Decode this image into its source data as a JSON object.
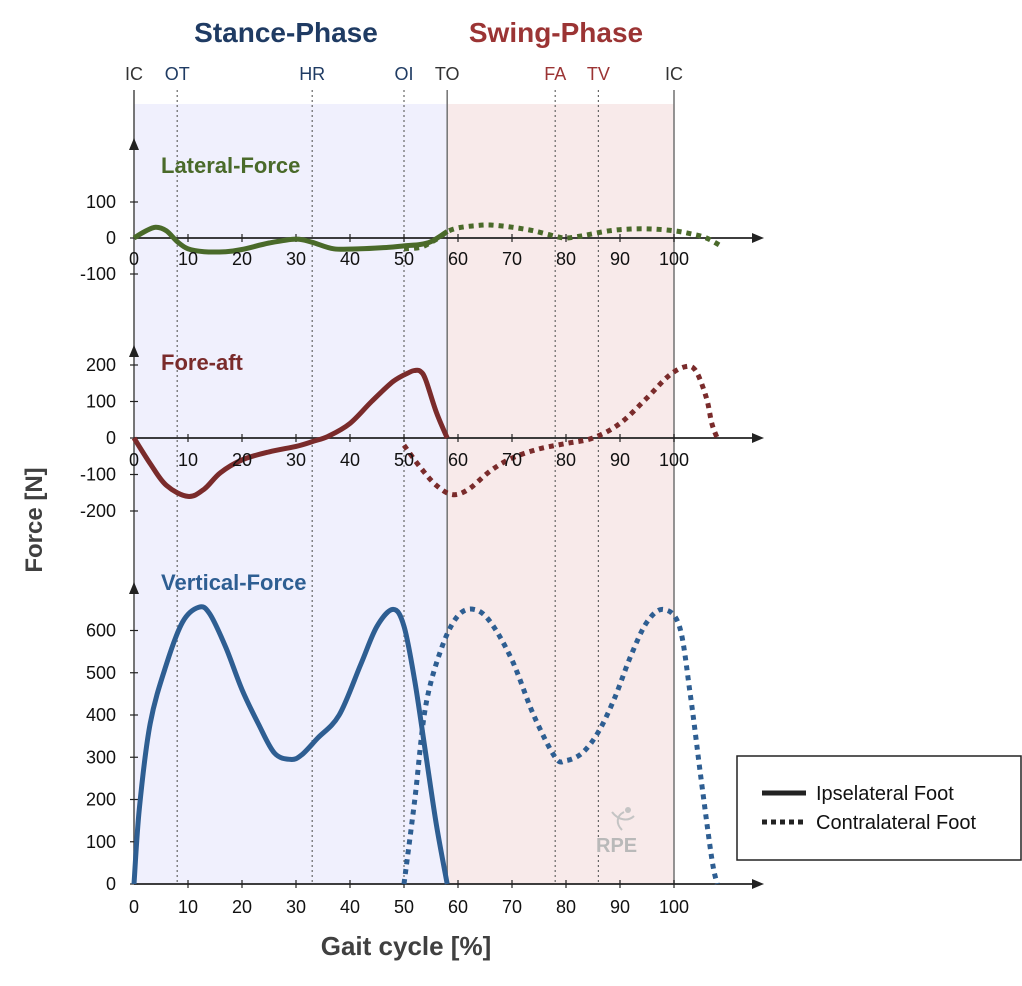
{
  "chart_data": {
    "type": "line",
    "phases": [
      {
        "label": "Stance-Phase",
        "from": 0,
        "to": 58,
        "color": "#1f3b63",
        "fill": "#f0f0fd"
      },
      {
        "label": "Swing-Phase",
        "from": 58,
        "to": 100,
        "color": "#9b3434",
        "fill": "#f8eaea"
      }
    ],
    "events": [
      {
        "label": "IC",
        "x": 0,
        "color": "#333333"
      },
      {
        "label": "OT",
        "x": 8,
        "color": "#1f3b63"
      },
      {
        "label": "HR",
        "x": 33,
        "color": "#1f3b63"
      },
      {
        "label": "OI",
        "x": 50,
        "color": "#1f3b63"
      },
      {
        "label": "TO",
        "x": 58,
        "color": "#333333"
      },
      {
        "label": "FA",
        "x": 78,
        "color": "#9b3434"
      },
      {
        "label": "TV",
        "x": 86,
        "color": "#9b3434"
      },
      {
        "label": "IC",
        "x": 100,
        "color": "#333333"
      }
    ],
    "xlabel": "Gait cycle [%]",
    "ylabel": "Force [N]",
    "xticks": [
      0,
      10,
      20,
      30,
      40,
      50,
      60,
      70,
      80,
      90,
      100
    ],
    "panels": [
      {
        "title": "Lateral-Force",
        "color": "#4a6a2a",
        "yticks": [
          100,
          0,
          -100
        ],
        "ylim": [
          -100,
          100
        ],
        "series": [
          {
            "name": "Ipselateral Foot",
            "style": "solid",
            "x": [
              0,
              2,
              4,
              6,
              8,
              10,
              13,
              17,
              20,
              25,
              30,
              33,
              37,
              42,
              47,
              50,
              53,
              55,
              57,
              58
            ],
            "y": [
              0,
              18,
              30,
              20,
              -10,
              -30,
              -38,
              -38,
              -32,
              -14,
              -3,
              -12,
              -30,
              -30,
              -26,
              -22,
              -18,
              -10,
              8,
              18
            ]
          },
          {
            "name": "Contralateral Foot",
            "style": "dotted",
            "x": [
              50,
              53,
              55,
              57,
              58,
              60,
              63,
              66,
              70,
              74,
              78,
              80,
              83,
              88,
              92,
              96,
              100,
              103,
              106,
              109
            ],
            "y": [
              -30,
              -26,
              -12,
              6,
              18,
              28,
              34,
              36,
              30,
              20,
              5,
              0,
              6,
              20,
              25,
              25,
              20,
              12,
              0,
              -25
            ]
          }
        ]
      },
      {
        "title": "Fore-aft",
        "color": "#7a2b2b",
        "yticks": [
          200,
          100,
          0,
          -100,
          -200
        ],
        "ylim": [
          -200,
          200
        ],
        "series": [
          {
            "name": "Ipselateral Foot",
            "style": "solid",
            "x": [
              0,
              3,
              6,
              10,
              13,
              16,
              20,
              25,
              30,
              33,
              36,
              40,
              44,
              48,
              51,
              52,
              53,
              54,
              56,
              58
            ],
            "y": [
              0,
              -70,
              -130,
              -160,
              -140,
              -95,
              -60,
              -38,
              -23,
              -10,
              5,
              40,
              100,
              155,
              180,
              185,
              183,
              160,
              70,
              0
            ]
          },
          {
            "name": "Contralateral Foot",
            "style": "dotted",
            "x": [
              50,
              53,
              56,
              59,
              62,
              66,
              70,
              75,
              80,
              85,
              90,
              95,
              99,
              102,
              104,
              106,
              107,
              108
            ],
            "y": [
              -20,
              -80,
              -130,
              -155,
              -140,
              -90,
              -55,
              -30,
              -15,
              0,
              40,
              110,
              170,
              195,
              185,
              110,
              40,
              0
            ]
          }
        ]
      },
      {
        "title": "Vertical-Force",
        "color": "#2e5e92",
        "yticks": [
          600,
          500,
          400,
          300,
          200,
          100,
          0
        ],
        "ylim": [
          0,
          650
        ],
        "series": [
          {
            "name": "Ipselateral Foot",
            "style": "solid",
            "x": [
              0,
              1,
              3,
              6,
              9,
              12,
              14,
              17,
              20,
              23,
              26,
              29,
              31,
              34,
              38,
              42,
              45,
              48,
              50,
              52,
              54,
              56,
              58
            ],
            "y": [
              0,
              180,
              380,
              520,
              620,
              655,
              640,
              560,
              460,
              380,
              310,
              295,
              305,
              345,
              400,
              520,
              610,
              650,
              610,
              480,
              310,
              140,
              0
            ]
          },
          {
            "name": "Contralateral Foot",
            "style": "dotted",
            "x": [
              50,
              52,
              54,
              57,
              60,
              63,
              66,
              70,
              74,
              78,
              80,
              83,
              86,
              89,
              92,
              95,
              98,
              101,
              103,
              105,
              107,
              108
            ],
            "y": [
              0,
              200,
              420,
              560,
              635,
              650,
              620,
              530,
              400,
              300,
              292,
              310,
              360,
              440,
              540,
              620,
              650,
              610,
              450,
              250,
              60,
              0
            ]
          }
        ]
      }
    ],
    "legend": {
      "position": "bottom-right",
      "items": [
        {
          "label": "Ipselateral Foot",
          "style": "solid"
        },
        {
          "label": "Contralateral Foot",
          "style": "dotted"
        }
      ]
    },
    "watermark": "RPE"
  }
}
